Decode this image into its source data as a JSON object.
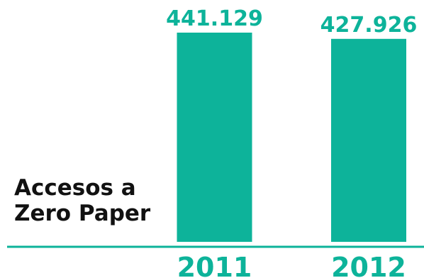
{
  "chart_data": {
    "type": "bar",
    "title_lines": [
      "Accesos a",
      "Zero Paper"
    ],
    "categories": [
      "2011",
      "2012"
    ],
    "values": [
      441129,
      427926
    ],
    "value_labels": [
      "441.129",
      "427.926"
    ],
    "xlabel": "",
    "ylabel": "",
    "ylim": [
      0,
      441129
    ],
    "grid": false,
    "legend": "none",
    "colors": {
      "bar": "#0DB39A",
      "label": "#0DB39A",
      "text": "#111111",
      "axis": "#0DB39A"
    }
  }
}
